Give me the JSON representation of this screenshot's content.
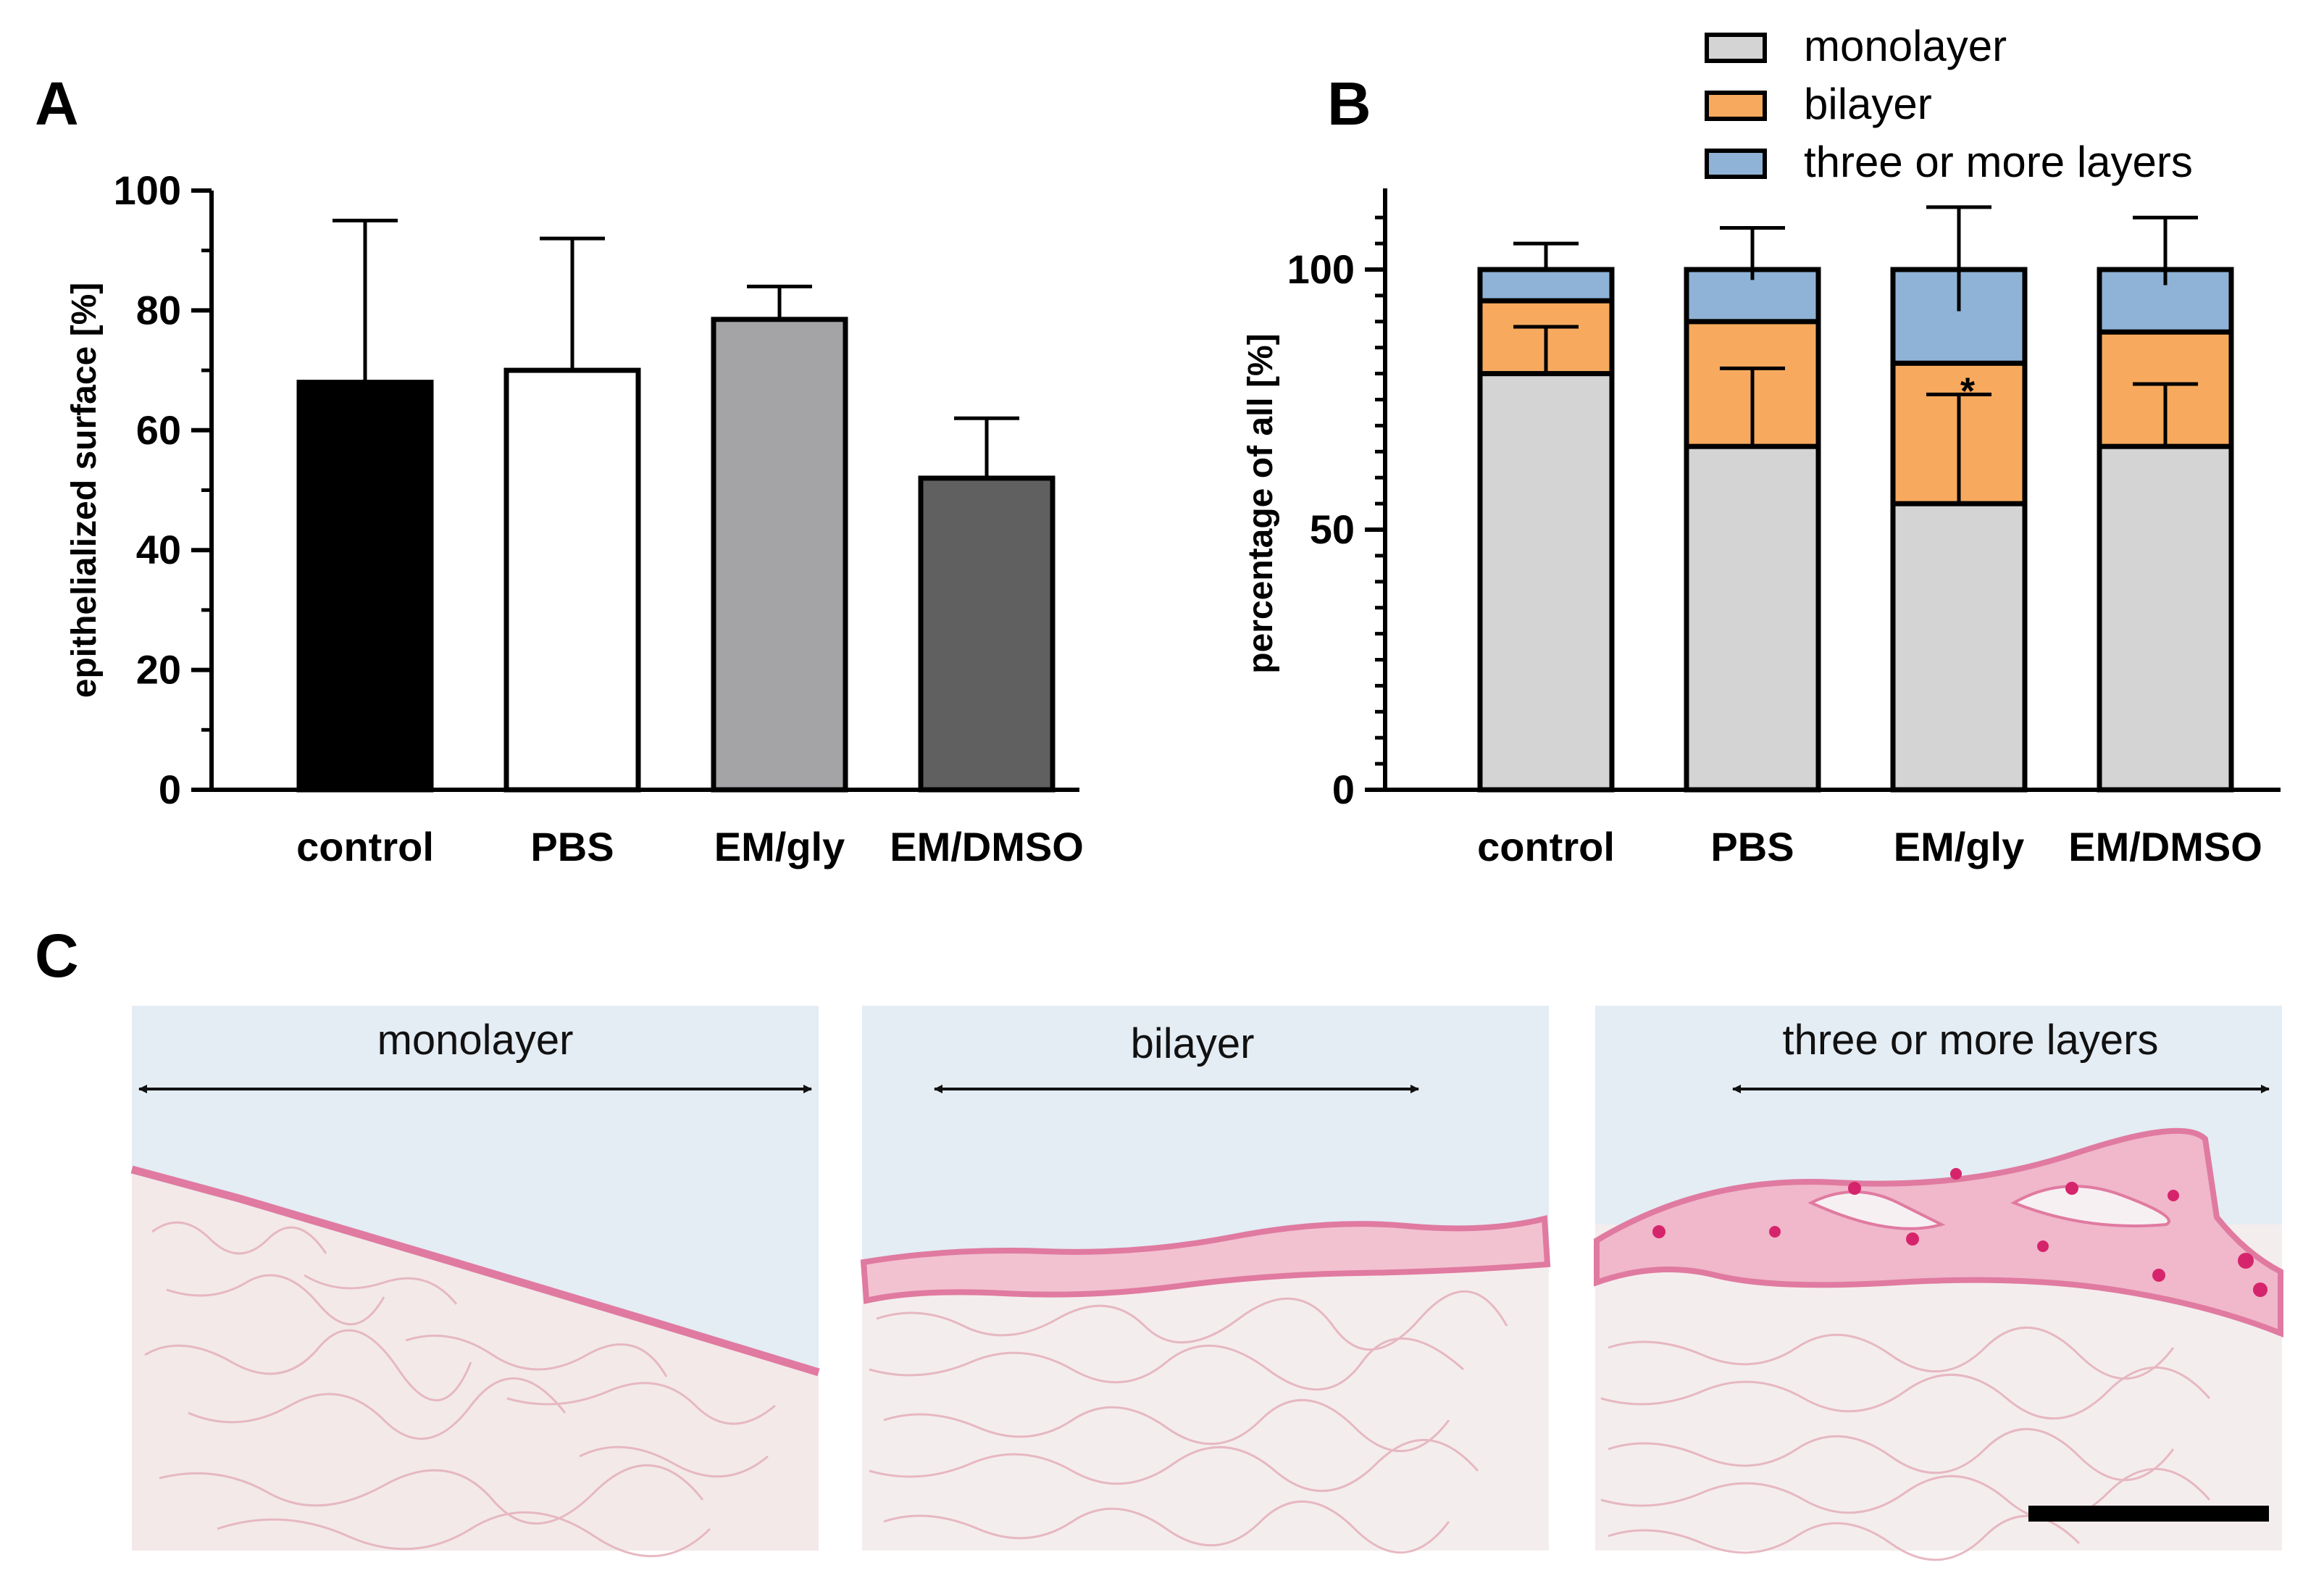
{
  "panels": {
    "a": "A",
    "b": "B",
    "c": "C"
  },
  "colors": {
    "control": "#000000",
    "pbs": "#ffffff",
    "em_gly": "#a4a3a6",
    "em_dmso": "#606060",
    "monolayer": "#d4d4d4",
    "bilayer": "#f7aa5e",
    "three": "#8fb3d6",
    "tissue_bg": "#f3ecec",
    "fiber": "#e9bfc6",
    "epithelium": "#e2789e",
    "nuclei": "#d6246c"
  },
  "chart_data": [
    {
      "id": "A",
      "type": "bar",
      "ylabel": "epithelialized surface [%]",
      "xlabel": "",
      "ylim": [
        0,
        100
      ],
      "yticks": [
        "0",
        "20",
        "40",
        "60",
        "80",
        "100"
      ],
      "categories": [
        "control",
        "PBS",
        "EM/gly",
        "EM/DMSO"
      ],
      "values": [
        68,
        70,
        78.5,
        52
      ],
      "error_upper": [
        95,
        92,
        84,
        62
      ]
    },
    {
      "id": "B",
      "type": "bar",
      "stacked": true,
      "ylabel": "percentage of all [%]",
      "xlabel": "",
      "ylim": [
        0,
        115
      ],
      "yticks": [
        "0",
        "50",
        "100"
      ],
      "categories": [
        "control",
        "PBS",
        "EM/gly",
        "EM/DMSO"
      ],
      "series": [
        {
          "name": "monolayer",
          "values": [
            80,
            66,
            55,
            66
          ]
        },
        {
          "name": "bilayer",
          "values": [
            14,
            24,
            27,
            22
          ]
        },
        {
          "name": "three or more layers",
          "values": [
            6,
            10,
            18,
            12
          ]
        }
      ],
      "error_bars": [
        [
          [
            89,
            80
          ],
          [
            105
          ]
        ],
        [
          [
            81,
            66
          ],
          [
            108,
            98
          ]
        ],
        [
          [
            76,
            55
          ],
          [
            112,
            92
          ]
        ],
        [
          [
            78,
            66
          ],
          [
            110,
            97
          ]
        ]
      ],
      "legend": [
        "monolayer",
        "bilayer",
        "three or more layers"
      ],
      "legend_position": "top-right",
      "annotations": [
        {
          "text": "*",
          "category": "EM/gly"
        }
      ]
    }
  ],
  "micrographs": [
    {
      "label": "monolayer"
    },
    {
      "label": "bilayer"
    },
    {
      "label": "three or more layers"
    }
  ]
}
